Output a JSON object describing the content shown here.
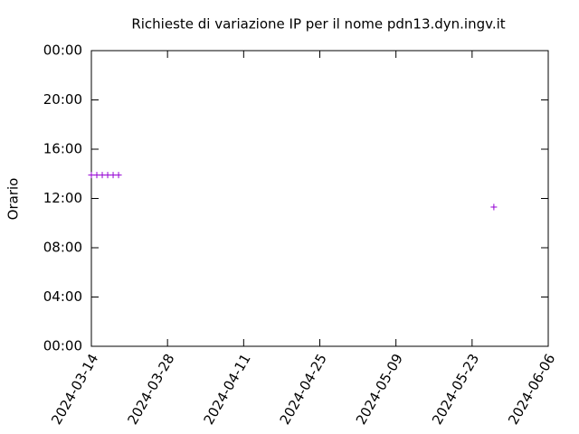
{
  "chart_data": {
    "type": "scatter",
    "title": "Richieste di variazione IP per il nome pdn13.dyn.ingv.it",
    "y_label": "Orario",
    "x": [
      "2024-03-14",
      "2024-03-15",
      "2024-03-16",
      "2024-03-17",
      "2024-03-18",
      "2024-03-19",
      "2024-05-27"
    ],
    "values": [
      13.9,
      13.9,
      13.9,
      13.9,
      13.9,
      13.9,
      11.3
    ],
    "color": "#9400d3",
    "xlim": [
      "2024-03-14",
      "2024-06-06"
    ],
    "xticks": [
      "2024-03-14",
      "2024-03-28",
      "2024-04-11",
      "2024-04-25",
      "2024-05-09",
      "2024-05-23",
      "2024-06-06"
    ],
    "ylim": [
      0,
      24
    ],
    "yticks": [
      {
        "value": 0,
        "label": "00:00"
      },
      {
        "value": 4,
        "label": "04:00"
      },
      {
        "value": 8,
        "label": "08:00"
      },
      {
        "value": 12,
        "label": "12:00"
      },
      {
        "value": 16,
        "label": "16:00"
      },
      {
        "value": 20,
        "label": "20:00"
      },
      {
        "value": 24,
        "label": "00:00"
      }
    ]
  }
}
